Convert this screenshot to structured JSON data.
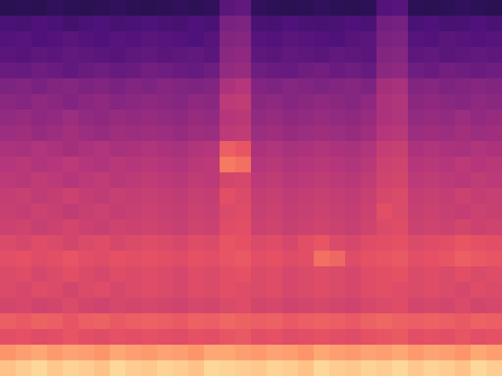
{
  "chart_data": {
    "type": "heatmap",
    "zlim": [
      0,
      100
    ],
    "tick_labels": false,
    "grid": false,
    "cells": [
      [
        16,
        17,
        16,
        18,
        17,
        16,
        17,
        18,
        17,
        16,
        17,
        18,
        17,
        18,
        28,
        30,
        18,
        17,
        16,
        17,
        18,
        17,
        16,
        17,
        26,
        27,
        17,
        16,
        17,
        18,
        17,
        16
      ],
      [
        24,
        23,
        25,
        24,
        22,
        24,
        25,
        23,
        24,
        25,
        24,
        23,
        25,
        24,
        36,
        37,
        24,
        23,
        25,
        24,
        23,
        24,
        25,
        24,
        34,
        35,
        24,
        25,
        23,
        24,
        25,
        24
      ],
      [
        26,
        27,
        25,
        26,
        28,
        26,
        25,
        27,
        26,
        28,
        27,
        26,
        25,
        27,
        38,
        39,
        27,
        26,
        28,
        27,
        26,
        25,
        27,
        28,
        36,
        37,
        27,
        26,
        28,
        27,
        26,
        27
      ],
      [
        28,
        27,
        29,
        28,
        30,
        29,
        28,
        27,
        29,
        30,
        28,
        29,
        30,
        28,
        40,
        41,
        29,
        28,
        30,
        29,
        28,
        30,
        29,
        28,
        38,
        39,
        29,
        30,
        28,
        29,
        30,
        29
      ],
      [
        32,
        31,
        33,
        32,
        30,
        32,
        33,
        31,
        32,
        34,
        33,
        32,
        31,
        33,
        42,
        43,
        33,
        32,
        31,
        33,
        34,
        32,
        33,
        31,
        40,
        41,
        33,
        32,
        34,
        33,
        32,
        33
      ],
      [
        37,
        38,
        36,
        38,
        39,
        37,
        38,
        36,
        38,
        37,
        39,
        38,
        37,
        38,
        48,
        50,
        38,
        37,
        39,
        38,
        37,
        38,
        39,
        37,
        46,
        47,
        38,
        39,
        37,
        38,
        39,
        38
      ],
      [
        40,
        39,
        41,
        40,
        38,
        40,
        41,
        39,
        40,
        41,
        40,
        39,
        41,
        40,
        52,
        53,
        40,
        41,
        39,
        40,
        41,
        40,
        39,
        41,
        48,
        49,
        40,
        41,
        40,
        39,
        41,
        40
      ],
      [
        42,
        43,
        41,
        42,
        44,
        42,
        41,
        43,
        42,
        43,
        42,
        41,
        43,
        42,
        50,
        51,
        42,
        43,
        41,
        42,
        43,
        42,
        41,
        43,
        48,
        49,
        42,
        43,
        42,
        44,
        42,
        43
      ],
      [
        44,
        45,
        43,
        44,
        46,
        44,
        43,
        45,
        44,
        45,
        44,
        43,
        45,
        44,
        52,
        53,
        44,
        45,
        43,
        44,
        45,
        44,
        43,
        45,
        50,
        51,
        44,
        45,
        44,
        46,
        44,
        45
      ],
      [
        48,
        47,
        49,
        48,
        46,
        48,
        49,
        47,
        48,
        49,
        48,
        47,
        49,
        50,
        66,
        64,
        48,
        49,
        47,
        48,
        49,
        48,
        47,
        49,
        54,
        55,
        48,
        49,
        48,
        47,
        49,
        48
      ],
      [
        50,
        51,
        49,
        50,
        52,
        50,
        49,
        51,
        50,
        51,
        50,
        49,
        51,
        52,
        72,
        70,
        50,
        51,
        49,
        50,
        51,
        50,
        49,
        51,
        56,
        57,
        50,
        51,
        50,
        52,
        50,
        51
      ],
      [
        52,
        51,
        53,
        52,
        50,
        52,
        53,
        51,
        52,
        53,
        52,
        51,
        53,
        52,
        58,
        59,
        52,
        53,
        51,
        52,
        53,
        52,
        51,
        53,
        57,
        58,
        52,
        53,
        52,
        51,
        53,
        52
      ],
      [
        54,
        55,
        53,
        54,
        56,
        54,
        53,
        55,
        54,
        55,
        54,
        53,
        55,
        54,
        62,
        60,
        54,
        55,
        53,
        54,
        55,
        54,
        53,
        55,
        59,
        60,
        54,
        55,
        54,
        56,
        54,
        55
      ],
      [
        55,
        54,
        56,
        55,
        53,
        55,
        56,
        54,
        55,
        56,
        55,
        54,
        56,
        55,
        60,
        61,
        55,
        56,
        54,
        55,
        56,
        55,
        54,
        56,
        62,
        60,
        55,
        56,
        55,
        54,
        56,
        55
      ],
      [
        56,
        57,
        55,
        56,
        58,
        56,
        55,
        57,
        56,
        57,
        56,
        55,
        57,
        56,
        61,
        62,
        56,
        57,
        55,
        56,
        57,
        56,
        55,
        57,
        60,
        61,
        56,
        57,
        56,
        58,
        56,
        57
      ],
      [
        60,
        59,
        61,
        60,
        58,
        60,
        61,
        59,
        60,
        61,
        60,
        59,
        61,
        60,
        64,
        63,
        60,
        61,
        59,
        62,
        64,
        60,
        59,
        61,
        62,
        63,
        60,
        61,
        62,
        64,
        63,
        62
      ],
      [
        62,
        63,
        61,
        62,
        64,
        62,
        61,
        63,
        62,
        63,
        62,
        61,
        63,
        62,
        64,
        65,
        62,
        63,
        61,
        62,
        70,
        68,
        61,
        63,
        64,
        65,
        62,
        63,
        64,
        66,
        65,
        64
      ],
      [
        60,
        61,
        59,
        60,
        62,
        60,
        59,
        61,
        60,
        61,
        60,
        59,
        61,
        60,
        62,
        63,
        60,
        61,
        59,
        60,
        61,
        60,
        59,
        61,
        62,
        63,
        60,
        61,
        60,
        62,
        60,
        61
      ],
      [
        60,
        59,
        61,
        60,
        58,
        60,
        61,
        59,
        60,
        61,
        60,
        59,
        61,
        60,
        62,
        61,
        60,
        61,
        59,
        60,
        61,
        60,
        59,
        61,
        62,
        61,
        60,
        61,
        60,
        59,
        61,
        60
      ],
      [
        58,
        59,
        57,
        58,
        60,
        58,
        57,
        59,
        58,
        59,
        58,
        57,
        59,
        58,
        60,
        61,
        58,
        59,
        57,
        58,
        59,
        58,
        57,
        59,
        60,
        61,
        58,
        59,
        58,
        60,
        58,
        59
      ],
      [
        66,
        65,
        67,
        66,
        64,
        66,
        67,
        65,
        66,
        67,
        66,
        65,
        67,
        66,
        68,
        67,
        66,
        67,
        65,
        66,
        67,
        66,
        65,
        67,
        68,
        67,
        66,
        67,
        66,
        65,
        67,
        66
      ],
      [
        62,
        63,
        61,
        62,
        64,
        62,
        61,
        63,
        62,
        63,
        62,
        61,
        63,
        62,
        64,
        65,
        62,
        63,
        61,
        62,
        63,
        62,
        61,
        63,
        64,
        65,
        62,
        63,
        62,
        64,
        62,
        63
      ],
      [
        78,
        80,
        82,
        79,
        81,
        80,
        78,
        82,
        80,
        79,
        81,
        80,
        78,
        82,
        82,
        80,
        79,
        81,
        80,
        78,
        82,
        80,
        79,
        81,
        80,
        82,
        79,
        81,
        80,
        78,
        82,
        80
      ],
      [
        88,
        90,
        92,
        89,
        91,
        90,
        88,
        92,
        90,
        89,
        91,
        90,
        88,
        92,
        91,
        90,
        89,
        91,
        90,
        88,
        92,
        90,
        89,
        91,
        90,
        92,
        89,
        91,
        90,
        88,
        92,
        90
      ]
    ]
  }
}
